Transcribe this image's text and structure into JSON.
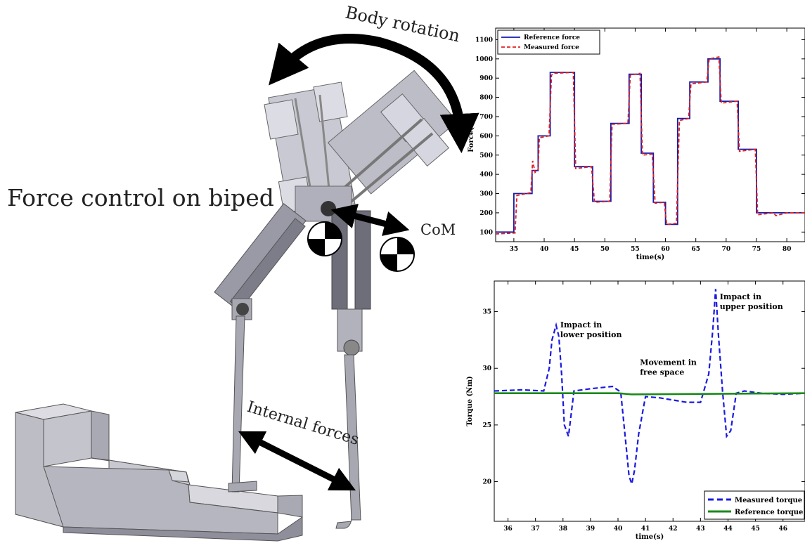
{
  "illustration": {
    "title": "Force control on biped",
    "labels": {
      "body_rotation": "Body rotation",
      "com": "CoM",
      "internal_forces": "Internal forces"
    }
  },
  "chart_data": [
    {
      "type": "line",
      "title": "",
      "xlabel": "time(s)",
      "ylabel": "Force(N)",
      "xlim": [
        32,
        83
      ],
      "ylim": [
        50,
        1160
      ],
      "xticks": [
        "35",
        "40",
        "45",
        "50",
        "55",
        "60",
        "65",
        "70",
        "75",
        "80"
      ],
      "xtick_values": [
        35,
        40,
        45,
        50,
        55,
        60,
        65,
        70,
        75,
        80
      ],
      "yticks": [
        100,
        200,
        300,
        400,
        500,
        600,
        700,
        800,
        900,
        1000,
        1100
      ],
      "legend": {
        "placement": "top-left",
        "entries": [
          "Reference force",
          "Measured force"
        ]
      },
      "colors": {
        "reference": "#1a1aa8",
        "measured": "#e02020"
      },
      "series": [
        {
          "name": "Reference force",
          "x": [
            32,
            35,
            35,
            38,
            38,
            39,
            39,
            41,
            41,
            45,
            45,
            48,
            48,
            51,
            51,
            54,
            54,
            56,
            56,
            58,
            58,
            60,
            60,
            62,
            62,
            64,
            64,
            67,
            67,
            69,
            69,
            72,
            72,
            75,
            75,
            78,
            78,
            80,
            80,
            83
          ],
          "values": [
            100,
            100,
            300,
            300,
            420,
            420,
            600,
            600,
            930,
            930,
            440,
            440,
            260,
            260,
            665,
            665,
            920,
            920,
            510,
            510,
            255,
            255,
            140,
            140,
            690,
            690,
            880,
            880,
            1000,
            1000,
            780,
            780,
            530,
            530,
            200,
            200,
            200,
            200,
            200,
            200
          ]
        },
        {
          "name": "Measured force",
          "x": [
            32,
            35.2,
            35.5,
            37.8,
            38.1,
            38.5,
            39.0,
            39.2,
            40.8,
            41.2,
            41.6,
            44.8,
            45.2,
            47.8,
            48.3,
            50.8,
            51.2,
            53.8,
            54.2,
            55.8,
            56.2,
            57.8,
            58.3,
            59.8,
            60.2,
            61.8,
            62.3,
            63.8,
            64.2,
            66.8,
            67.2,
            68.8,
            69.2,
            71.8,
            72.2,
            74.8,
            75.2,
            77.8,
            78.2,
            80.0,
            83
          ],
          "values": [
            90,
            95,
            290,
            305,
            470,
            410,
            425,
            590,
            600,
            915,
            925,
            930,
            430,
            440,
            255,
            260,
            660,
            665,
            915,
            925,
            500,
            505,
            250,
            255,
            140,
            145,
            680,
            690,
            870,
            880,
            1000,
            1010,
            770,
            780,
            520,
            530,
            190,
            200,
            185,
            200,
            200
          ]
        }
      ]
    },
    {
      "type": "line",
      "title": "",
      "xlabel": "time(s)",
      "ylabel": "Torque (Nm)",
      "xlim": [
        35.5,
        46.8
      ],
      "ylim": [
        16.5,
        37.7
      ],
      "xticks": [
        "36",
        "37",
        "38",
        "39",
        "40",
        "41",
        "42",
        "43",
        "44",
        "45",
        "46"
      ],
      "xtick_values": [
        36,
        37,
        38,
        39,
        40,
        41,
        42,
        43,
        44,
        45,
        46
      ],
      "yticks": [
        20,
        25,
        30,
        35
      ],
      "legend": {
        "placement": "bottom-right",
        "entries": [
          "Measured torque",
          "Reference torque"
        ]
      },
      "colors": {
        "measured": "#1a1ae0",
        "reference": "#1a8a1a"
      },
      "annotations": [
        {
          "text": "Impact in lower position",
          "lines": [
            "Impact in",
            "lower position"
          ],
          "x": 37.9,
          "y": 33.6
        },
        {
          "text": "Movement in free space",
          "lines": [
            "Movement in",
            "free space"
          ],
          "x": 40.8,
          "y": 30.3
        },
        {
          "text": "Impact in upper position",
          "lines": [
            "Impact in",
            "upper position"
          ],
          "x": 43.7,
          "y": 36.1
        }
      ],
      "series": [
        {
          "name": "Measured torque",
          "x": [
            35.5,
            36.5,
            37.3,
            37.5,
            37.6,
            37.75,
            37.85,
            37.95,
            38.05,
            38.2,
            38.4,
            39.0,
            39.8,
            40.1,
            40.3,
            40.4,
            40.5,
            40.6,
            40.75,
            41.0,
            41.5,
            42.0,
            42.5,
            43.0,
            43.3,
            43.45,
            43.55,
            43.65,
            43.8,
            43.95,
            44.1,
            44.3,
            44.6,
            45.2,
            46.0,
            46.8
          ],
          "values": [
            28.0,
            28.1,
            28.0,
            30.0,
            32.5,
            33.8,
            32.8,
            29.5,
            25.0,
            24.0,
            28.0,
            28.2,
            28.4,
            27.9,
            23.0,
            20.5,
            19.8,
            21.0,
            24.2,
            27.5,
            27.4,
            27.2,
            27.0,
            27.0,
            29.5,
            33.5,
            37.0,
            33.0,
            28.0,
            24.0,
            24.5,
            27.8,
            28.0,
            27.8,
            27.7,
            27.8
          ]
        },
        {
          "name": "Reference torque",
          "x": [
            35.5,
            40.0,
            40.5,
            46.8
          ],
          "values": [
            27.8,
            27.8,
            27.7,
            27.8
          ]
        }
      ]
    }
  ]
}
